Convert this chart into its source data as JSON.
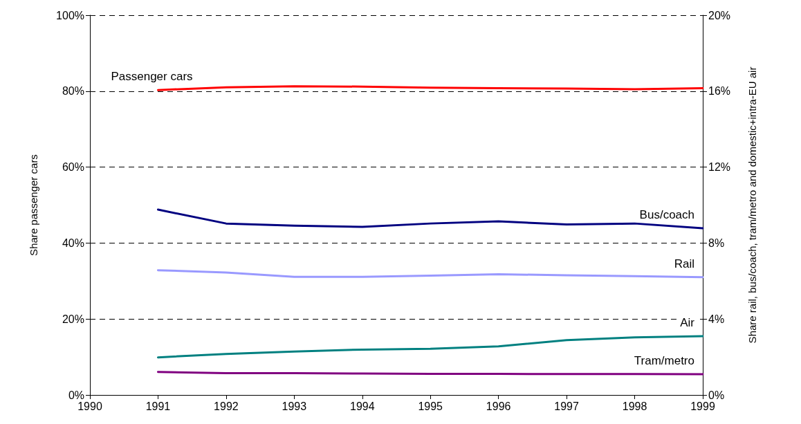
{
  "chart_data": {
    "type": "line",
    "x": [
      1991,
      1992,
      1993,
      1994,
      1995,
      1996,
      1997,
      1998,
      1999
    ],
    "series": [
      {
        "name": "Passenger cars",
        "color": "#ff0000",
        "values": [
          80.3,
          81.0,
          81.3,
          81.2,
          80.9,
          80.8,
          80.7,
          80.5,
          80.8
        ]
      },
      {
        "name": "Bus/coach",
        "color": "#000080",
        "axis": "y2",
        "values": [
          9.76,
          9.03,
          8.92,
          8.85,
          9.03,
          9.14,
          8.98,
          9.03,
          8.78
        ]
      },
      {
        "name": "Rail",
        "color": "#9999ff",
        "axis": "y2",
        "values": [
          6.57,
          6.45,
          6.22,
          6.22,
          6.28,
          6.36,
          6.3,
          6.26,
          6.2
        ]
      },
      {
        "name": "Air",
        "color": "#008080",
        "axis": "y2",
        "values": [
          1.98,
          2.16,
          2.29,
          2.39,
          2.43,
          2.56,
          2.89,
          3.03,
          3.1
        ]
      },
      {
        "name": "Tram/metro",
        "color": "#800080",
        "axis": "y2",
        "values": [
          1.21,
          1.15,
          1.15,
          1.13,
          1.11,
          1.11,
          1.1,
          1.1,
          1.09
        ]
      }
    ],
    "xlim": [
      1990,
      1999
    ],
    "xticks": [
      1990,
      1991,
      1992,
      1993,
      1994,
      1995,
      1996,
      1997,
      1998,
      1999
    ],
    "ylim": [
      0,
      100
    ],
    "yticks": [
      {
        "value": 0,
        "label": "0%"
      },
      {
        "value": 20,
        "label": "20%"
      },
      {
        "value": 40,
        "label": "40%"
      },
      {
        "value": 60,
        "label": "60%"
      },
      {
        "value": 80,
        "label": "80%"
      },
      {
        "value": 100,
        "label": "100%"
      }
    ],
    "y2lim": [
      0,
      20
    ],
    "y2ticks": [
      {
        "value": 0,
        "label": "0%"
      },
      {
        "value": 4,
        "label": "4%"
      },
      {
        "value": 8,
        "label": "8%"
      },
      {
        "value": 12,
        "label": "12%"
      },
      {
        "value": 16,
        "label": "16%"
      },
      {
        "value": 20,
        "label": "20%"
      }
    ],
    "ylabel": "Share passenger cars",
    "y2label": "Share rail, bus/coach, tram/metro and domestic+intra-EU air",
    "grid": "y",
    "legend": false,
    "marker": "none",
    "line_style": "solid"
  }
}
